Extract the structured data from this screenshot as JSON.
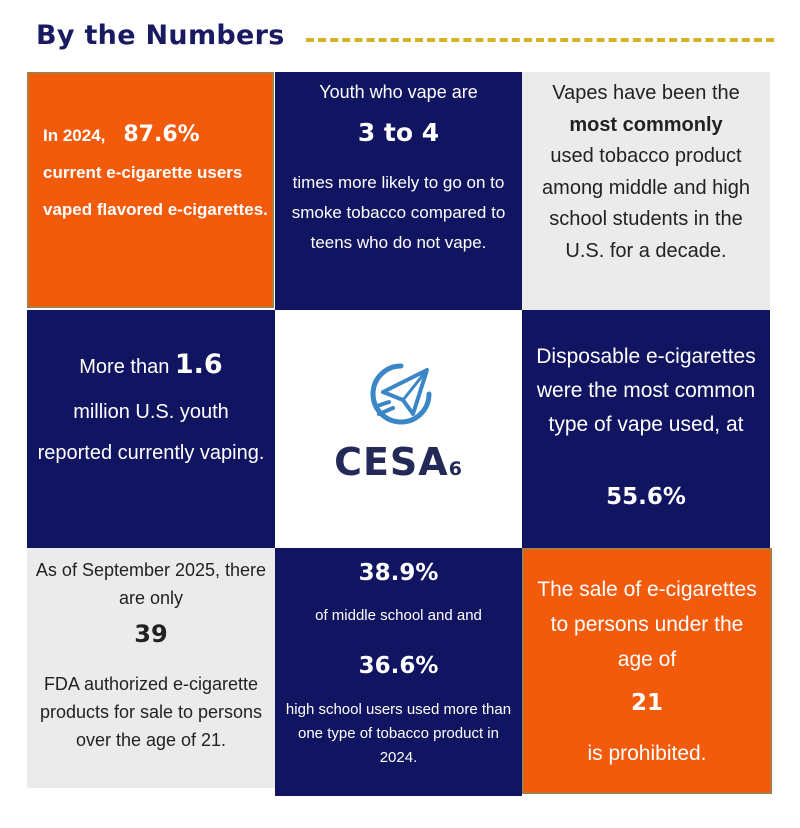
{
  "header": {
    "title": "By the Numbers"
  },
  "tiles": {
    "flavored": {
      "lead_a": "In 2024,",
      "stat": "87.6%",
      "lead_b": "current e-cigarette users vaped flavored e-cigarettes."
    },
    "smoke": {
      "line1": "Youth who vape are",
      "stat": "3 to 4",
      "line2": "times more likely to go on to smoke tobacco compared to teens who do not vape."
    },
    "common": {
      "text_a": "Vapes have been the",
      "highlight": "most commonly",
      "text_b": "used tobacco product among middle and high school students in the U.S. for a decade."
    },
    "youth": {
      "text_a": "More than",
      "stat": "1.6",
      "text_b": "million U.S. youth reported currently vaping."
    },
    "logo": {
      "name": "CESA",
      "number": "6",
      "icon": "paper-plane-icon"
    },
    "disposable": {
      "text": "Disposable e-cigarettes were the most common type of vape used, at",
      "stat": "55.6%"
    },
    "authorized": {
      "line1": "As of September 2025, there are only",
      "stat": "39",
      "line2": "FDA authorized e-cigarette products for sale to persons over the age of 21."
    },
    "multiple": {
      "stat1": "38.9%",
      "mid1": "of middle school and and",
      "stat2": "36.6%",
      "mid2": "high school users used more than one type of tobacco product in 2024."
    },
    "sale": {
      "text": "The sale of e-cigarettes to persons under the age of",
      "stat": "21",
      "line2": "is prohibited."
    }
  },
  "colors": {
    "navy": "#111561",
    "orange": "#f25a0c",
    "grey": "#ebebeb",
    "gold": "#d4b226",
    "logo_blue": "#3b86c6",
    "logo_dark": "#242a58"
  }
}
